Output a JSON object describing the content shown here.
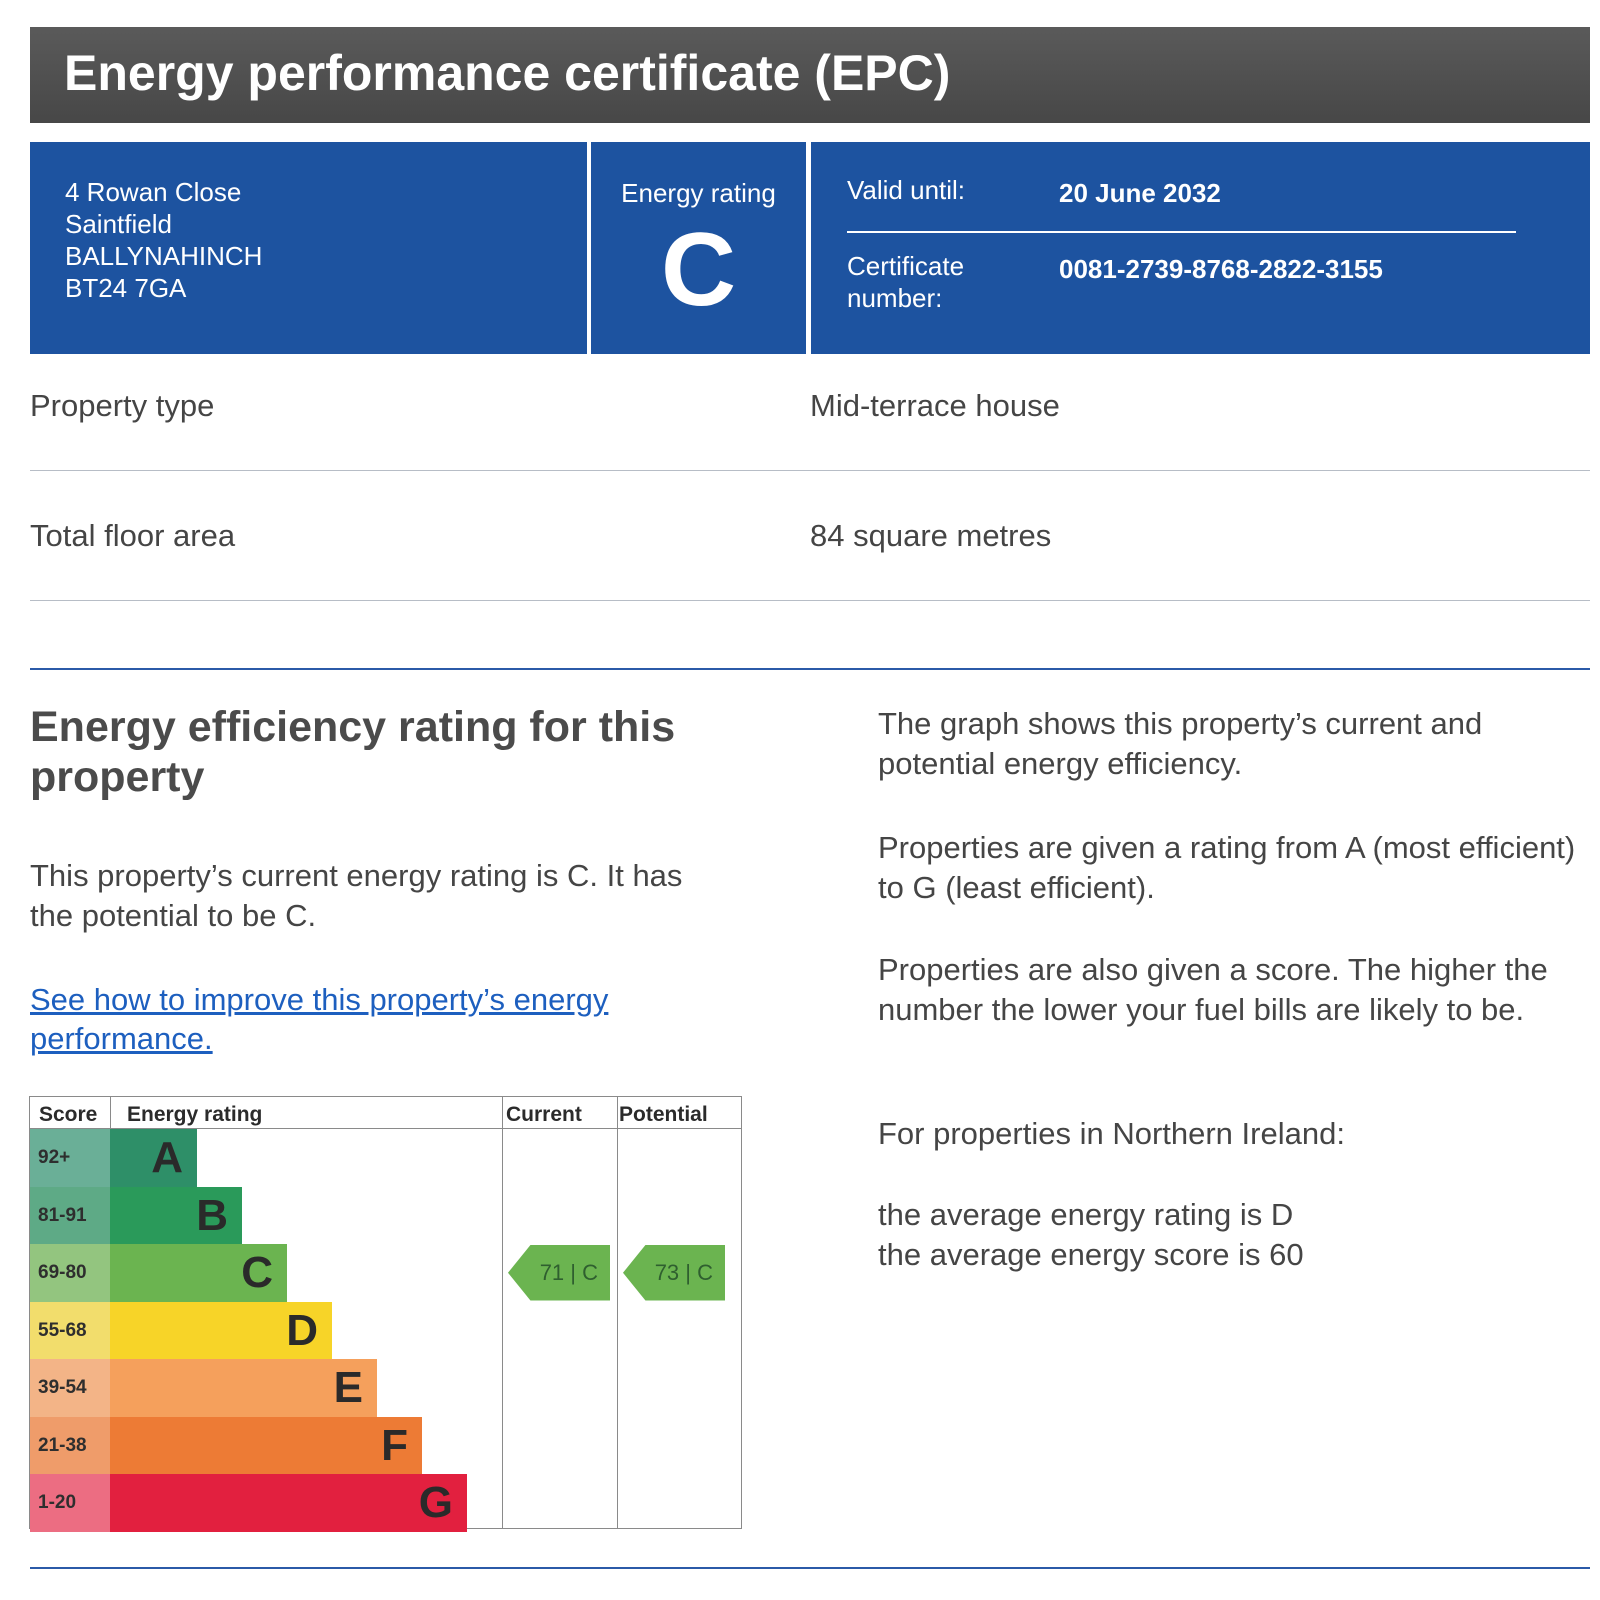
{
  "title": "Energy performance certificate (EPC)",
  "address": [
    "4 Rowan Close",
    "Saintfield",
    "BALLYNAHINCH",
    "BT24 7GA"
  ],
  "energy_rating": {
    "label": "Energy rating",
    "letter": "C"
  },
  "valid_until": {
    "label": "Valid until:",
    "value": "20 June 2032"
  },
  "certificate": {
    "label_line1": "Certificate",
    "label_line2": "number:",
    "value": "0081-2739-8768-2822-3155"
  },
  "property_type": {
    "label": "Property type",
    "value": "Mid-terrace house"
  },
  "floor_area": {
    "label": "Total floor area",
    "value": "84 square metres"
  },
  "section": {
    "heading": "Energy efficiency rating for this property",
    "summary": "This property’s current energy rating is C. It has the potential to be C.",
    "link": "See how to improve this property’s energy performance."
  },
  "right_text": {
    "p1": "The graph shows this property’s current and potential energy efficiency.",
    "p2": "Properties are given a rating from A (most efficient) to G (least efficient).",
    "p3": "Properties are also given a score. The higher the number the lower your fuel bills are likely to be.",
    "p4": "For properties in Northern Ireland:",
    "p5_line1": "the average energy rating is D",
    "p5_line2": "the average energy score is 60"
  },
  "chart_data": {
    "type": "table",
    "headers": [
      "Score",
      "Energy rating",
      "Current",
      "Potential"
    ],
    "bands": [
      {
        "score": "92+",
        "letter": "A",
        "color": "#2e8f68",
        "score_bg": "#6aaf97"
      },
      {
        "score": "81-91",
        "letter": "B",
        "color": "#2a9a5a",
        "score_bg": "#5eaa86"
      },
      {
        "score": "69-80",
        "letter": "C",
        "color": "#6bb450",
        "score_bg": "#93c57f"
      },
      {
        "score": "55-68",
        "letter": "D",
        "color": "#f7d428",
        "score_bg": "#f2dd6c"
      },
      {
        "score": "39-54",
        "letter": "E",
        "color": "#f5a05c",
        "score_bg": "#f3b487"
      },
      {
        "score": "21-38",
        "letter": "F",
        "color": "#ed7b35",
        "score_bg": "#ef9c6a"
      },
      {
        "score": "1-20",
        "letter": "G",
        "color": "#e2203f",
        "score_bg": "#ec6d82"
      }
    ],
    "current": {
      "score": 71,
      "letter": "C",
      "text": "71 | C"
    },
    "potential": {
      "score": 73,
      "letter": "C",
      "text": "73 | C"
    },
    "marker_color": "#6bb450"
  }
}
